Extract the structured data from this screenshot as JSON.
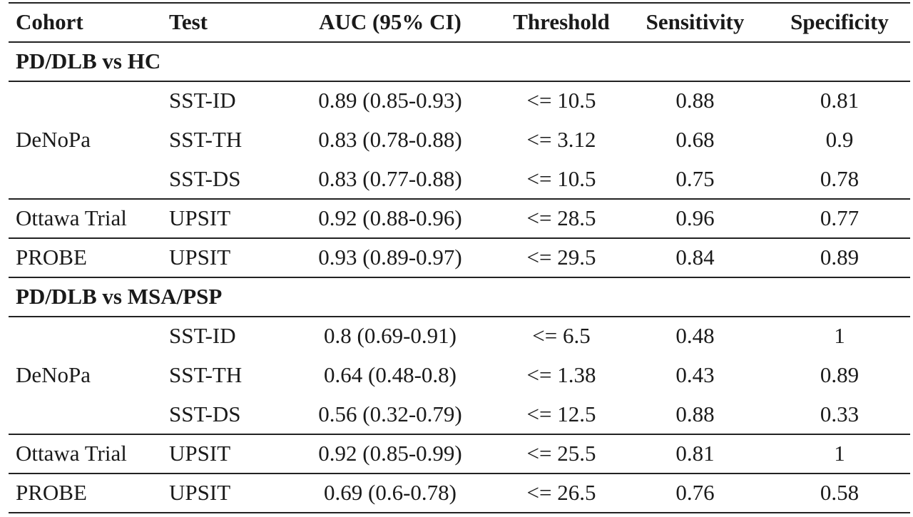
{
  "table": {
    "headers": [
      "Cohort",
      "Test",
      "AUC (95% CI)",
      "Threshold",
      "Sensitivity",
      "Specificity"
    ],
    "sections": [
      {
        "title": "PD/DLB vs HC",
        "groups": [
          {
            "cohort": "DeNoPa",
            "rows": [
              {
                "test": "SST-ID",
                "auc": "0.89 (0.85-0.93)",
                "threshold": "<= 10.5",
                "sensitivity": "0.88",
                "specificity": "0.81"
              },
              {
                "test": "SST-TH",
                "auc": "0.83 (0.78-0.88)",
                "threshold": "<= 3.12",
                "sensitivity": "0.68",
                "specificity": "0.9"
              },
              {
                "test": "SST-DS",
                "auc": "0.83 (0.77-0.88)",
                "threshold": "<= 10.5",
                "sensitivity": "0.75",
                "specificity": "0.78"
              }
            ]
          },
          {
            "cohort": "Ottawa Trial",
            "rows": [
              {
                "test": "UPSIT",
                "auc": "0.92 (0.88-0.96)",
                "threshold": "<= 28.5",
                "sensitivity": "0.96",
                "specificity": "0.77"
              }
            ]
          },
          {
            "cohort": "PROBE",
            "rows": [
              {
                "test": "UPSIT",
                "auc": "0.93 (0.89-0.97)",
                "threshold": "<= 29.5",
                "sensitivity": "0.84",
                "specificity": "0.89"
              }
            ]
          }
        ]
      },
      {
        "title": "PD/DLB vs MSA/PSP",
        "groups": [
          {
            "cohort": "DeNoPa",
            "rows": [
              {
                "test": "SST-ID",
                "auc": "0.8 (0.69-0.91)",
                "threshold": "<= 6.5",
                "sensitivity": "0.48",
                "specificity": "1"
              },
              {
                "test": "SST-TH",
                "auc": "0.64 (0.48-0.8)",
                "threshold": "<= 1.38",
                "sensitivity": "0.43",
                "specificity": "0.89"
              },
              {
                "test": "SST-DS",
                "auc": "0.56 (0.32-0.79)",
                "threshold": "<= 12.5",
                "sensitivity": "0.88",
                "specificity": "0.33"
              }
            ]
          },
          {
            "cohort": "Ottawa Trial",
            "rows": [
              {
                "test": "UPSIT",
                "auc": "0.92 (0.85-0.99)",
                "threshold": "<= 25.5",
                "sensitivity": "0.81",
                "specificity": "1"
              }
            ]
          },
          {
            "cohort": "PROBE",
            "rows": [
              {
                "test": "UPSIT",
                "auc": "0.69 (0.6-0.78)",
                "threshold": "<= 26.5",
                "sensitivity": "0.76",
                "specificity": "0.58"
              }
            ]
          }
        ]
      }
    ]
  }
}
